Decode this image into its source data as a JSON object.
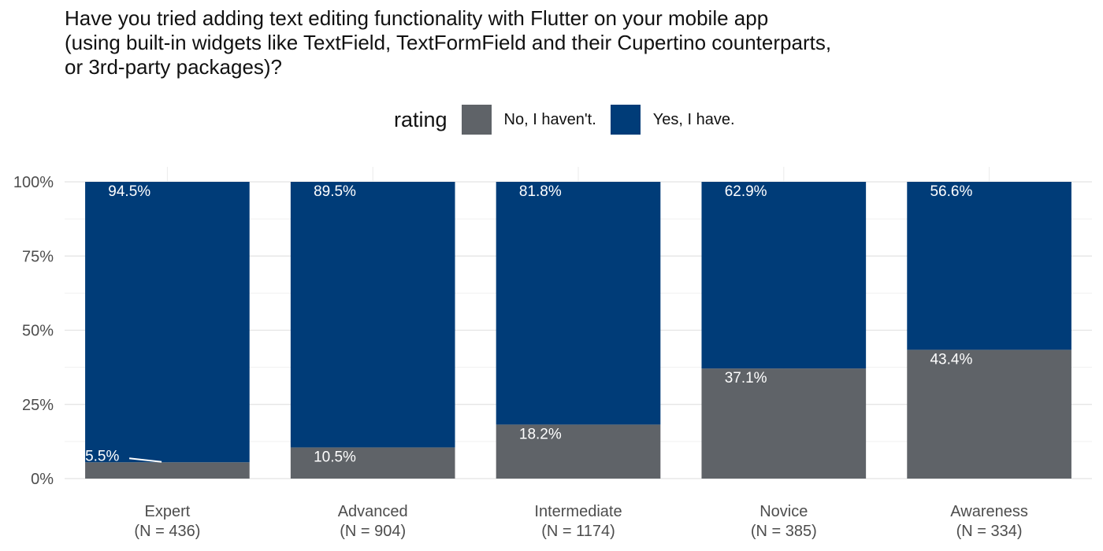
{
  "title_lines": [
    "Have you tried adding text editing functionality with Flutter on your mobile app",
    "(using built-in widgets like TextField, TextFormField and their Cupertino counterparts,",
    "or 3rd-party packages)?"
  ],
  "legend": {
    "title": "rating",
    "items": [
      {
        "label": "No, I haven't.",
        "color": "#5f6368"
      },
      {
        "label": "Yes, I have.",
        "color": "#003c78"
      }
    ]
  },
  "chart_data": {
    "type": "bar",
    "stacked": true,
    "categories": [
      [
        "Expert",
        "(N = 436)"
      ],
      [
        "Advanced",
        "(N = 904)"
      ],
      [
        "Intermediate",
        "(N = 1174)"
      ],
      [
        "Novice",
        "(N = 385)"
      ],
      [
        "Awareness",
        "(N = 334)"
      ]
    ],
    "series": [
      {
        "name": "No, I haven't.",
        "color": "#5f6368",
        "values": [
          5.5,
          10.5,
          18.2,
          37.1,
          43.4
        ],
        "labels": [
          "5.5%",
          "10.5%",
          "18.2%",
          "37.1%",
          "43.4%"
        ]
      },
      {
        "name": "Yes, I have.",
        "color": "#003c78",
        "values": [
          94.5,
          89.5,
          81.8,
          62.9,
          56.6
        ],
        "labels": [
          "94.5%",
          "89.5%",
          "81.8%",
          "62.9%",
          "56.6%"
        ]
      }
    ],
    "y_ticks": [
      {
        "value": 0,
        "label": "0%"
      },
      {
        "value": 25,
        "label": "25%"
      },
      {
        "value": 50,
        "label": "50%"
      },
      {
        "value": 75,
        "label": "75%"
      },
      {
        "value": 100,
        "label": "100%"
      }
    ],
    "ylim": [
      0,
      100
    ],
    "grid": true,
    "legend_position": "top"
  }
}
